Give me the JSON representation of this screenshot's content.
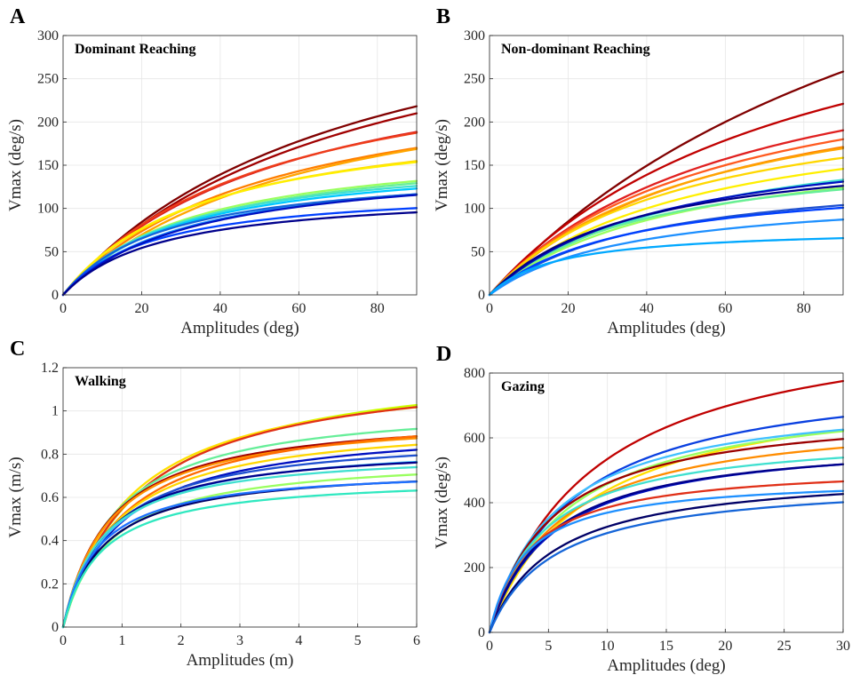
{
  "chart_data": [
    {
      "letter": "A",
      "type": "line",
      "title": "Dominant Reaching",
      "xlabel": "Amplitudes (deg)",
      "ylabel": "Vmax (deg/s)",
      "xlim": [
        0,
        90
      ],
      "ylim": [
        0,
        300
      ],
      "xticks": [
        0,
        20,
        40,
        60,
        80
      ],
      "yticks": [
        0,
        50,
        100,
        150,
        200,
        250,
        300
      ],
      "grid": true,
      "series": [
        {
          "color": "#800000",
          "vmax": 400,
          "x_half": 75
        },
        {
          "color": "#a00000",
          "vmax": 385,
          "x_half": 75
        },
        {
          "color": "#d81e1e",
          "vmax": 310,
          "x_half": 58
        },
        {
          "color": "#ee3c1a",
          "vmax": 300,
          "x_half": 54
        },
        {
          "color": "#ff7f00",
          "vmax": 272,
          "x_half": 54
        },
        {
          "color": "#ffa500",
          "vmax": 285,
          "x_half": 62
        },
        {
          "color": "#ffd700",
          "vmax": 220,
          "x_half": 38
        },
        {
          "color": "#ffef00",
          "vmax": 215,
          "x_half": 36
        },
        {
          "color": "#9aff60",
          "vmax": 180,
          "x_half": 33
        },
        {
          "color": "#66ee99",
          "vmax": 178,
          "x_half": 34
        },
        {
          "color": "#40e0d0",
          "vmax": 168,
          "x_half": 30
        },
        {
          "color": "#00c8ff",
          "vmax": 164,
          "x_half": 30
        },
        {
          "color": "#1e90ff",
          "vmax": 158,
          "x_half": 32
        },
        {
          "color": "#1565d8",
          "vmax": 150,
          "x_half": 26
        },
        {
          "color": "#0040ff",
          "vmax": 126,
          "x_half": 23
        },
        {
          "color": "#0010c0",
          "vmax": 158,
          "x_half": 33
        },
        {
          "color": "#00008b",
          "vmax": 122,
          "x_half": 25
        }
      ]
    },
    {
      "letter": "B",
      "type": "line",
      "title": "Non-dominant Reaching",
      "xlabel": "Amplitudes (deg)",
      "ylabel": "Vmax (deg/s)",
      "xlim": [
        0,
        90
      ],
      "ylim": [
        0,
        300
      ],
      "xticks": [
        0,
        20,
        40,
        60,
        80
      ],
      "yticks": [
        0,
        50,
        100,
        150,
        200,
        250,
        300
      ],
      "grid": true,
      "series": [
        {
          "color": "#800000",
          "vmax": 620,
          "x_half": 126
        },
        {
          "color": "#c00000",
          "vmax": 420,
          "x_half": 81
        },
        {
          "color": "#e02020",
          "vmax": 330,
          "x_half": 66
        },
        {
          "color": "#ff5a1f",
          "vmax": 300,
          "x_half": 60
        },
        {
          "color": "#ff7f00",
          "vmax": 285,
          "x_half": 60
        },
        {
          "color": "#ffa500",
          "vmax": 275,
          "x_half": 56
        },
        {
          "color": "#ffd700",
          "vmax": 245,
          "x_half": 49
        },
        {
          "color": "#ffef00",
          "vmax": 230,
          "x_half": 52
        },
        {
          "color": "#40e0d0",
          "vmax": 210,
          "x_half": 52
        },
        {
          "color": "#9aff60",
          "vmax": 190,
          "x_half": 48
        },
        {
          "color": "#66ee99",
          "vmax": 175,
          "x_half": 39
        },
        {
          "color": "#0010c0",
          "vmax": 195,
          "x_half": 44
        },
        {
          "color": "#00008b",
          "vmax": 178,
          "x_half": 37
        },
        {
          "color": "#1e50d0",
          "vmax": 150,
          "x_half": 40
        },
        {
          "color": "#0040ff",
          "vmax": 140,
          "x_half": 35
        },
        {
          "color": "#1e90ff",
          "vmax": 122,
          "x_half": 36
        },
        {
          "color": "#00a8ff",
          "vmax": 78,
          "x_half": 17
        }
      ]
    },
    {
      "letter": "C",
      "type": "line",
      "title": "Walking",
      "xlabel": "Amplitudes (m)",
      "ylabel": "Vmax (m/s)",
      "xlim": [
        0,
        6
      ],
      "ylim": [
        0,
        1.2
      ],
      "xticks": [
        0,
        1,
        2,
        3,
        4,
        5,
        6
      ],
      "yticks": [
        0,
        0.2,
        0.4,
        0.6,
        0.8,
        1,
        1.2
      ],
      "grid": true,
      "series": [
        {
          "color": "#ccff00",
          "vmax": 1.25,
          "x_half": 1.3
        },
        {
          "color": "#ffe000",
          "vmax": 1.21,
          "x_half": 1.14
        },
        {
          "color": "#e03018",
          "vmax": 1.23,
          "x_half": 1.25
        },
        {
          "color": "#66ee99",
          "vmax": 1.05,
          "x_half": 0.87
        },
        {
          "color": "#a00000",
          "vmax": 1.0,
          "x_half": 0.8
        },
        {
          "color": "#ff9000",
          "vmax": 0.99,
          "x_half": 0.8
        },
        {
          "color": "#ff6a00",
          "vmax": 1.03,
          "x_half": 1.0
        },
        {
          "color": "#ffd700",
          "vmax": 0.97,
          "x_half": 0.9
        },
        {
          "color": "#0010c0",
          "vmax": 0.95,
          "x_half": 0.95
        },
        {
          "color": "#1e50d0",
          "vmax": 0.9,
          "x_half": 0.8
        },
        {
          "color": "#40c0ff",
          "vmax": 0.86,
          "x_half": 0.75
        },
        {
          "color": "#00008b",
          "vmax": 0.85,
          "x_half": 0.7
        },
        {
          "color": "#40e0d0",
          "vmax": 0.82,
          "x_half": 0.65
        },
        {
          "color": "#9aff60",
          "vmax": 0.8,
          "x_half": 0.8
        },
        {
          "color": "#000066",
          "vmax": 0.75,
          "x_half": 0.68
        },
        {
          "color": "#1e70ff",
          "vmax": 0.74,
          "x_half": 0.6
        },
        {
          "color": "#30e8c0",
          "vmax": 0.7,
          "x_half": 0.65
        }
      ]
    },
    {
      "letter": "D",
      "type": "line",
      "title": "Gazing",
      "xlabel": "Amplitudes (deg)",
      "ylabel": "Vmax (deg/s)",
      "xlim": [
        0,
        30
      ],
      "ylim": [
        0,
        800
      ],
      "xticks": [
        0,
        5,
        10,
        15,
        20,
        25,
        30
      ],
      "yticks": [
        0,
        200,
        400,
        600,
        800
      ],
      "grid": true,
      "series": [
        {
          "color": "#c00000",
          "vmax": 1000,
          "x_half": 8.7
        },
        {
          "color": "#0a40e0",
          "vmax": 820,
          "x_half": 7.0
        },
        {
          "color": "#ffe000",
          "vmax": 790,
          "x_half": 8.0
        },
        {
          "color": "#9aff60",
          "vmax": 755,
          "x_half": 6.5
        },
        {
          "color": "#40c0ff",
          "vmax": 740,
          "x_half": 5.5
        },
        {
          "color": "#9b0000",
          "vmax": 700,
          "x_half": 5.2
        },
        {
          "color": "#ff8c00",
          "vmax": 680,
          "x_half": 5.8
        },
        {
          "color": "#40e0d0",
          "vmax": 620,
          "x_half": 4.5
        },
        {
          "color": "#0010c0",
          "vmax": 610,
          "x_half": 5.3
        },
        {
          "color": "#00008b",
          "vmax": 605,
          "x_half": 5.0
        },
        {
          "color": "#e03018",
          "vmax": 520,
          "x_half": 3.5
        },
        {
          "color": "#1e90ff",
          "vmax": 480,
          "x_half": 3.0
        },
        {
          "color": "#000066",
          "vmax": 505,
          "x_half": 5.5
        },
        {
          "color": "#1565d8",
          "vmax": 475,
          "x_half": 5.5
        }
      ]
    }
  ]
}
